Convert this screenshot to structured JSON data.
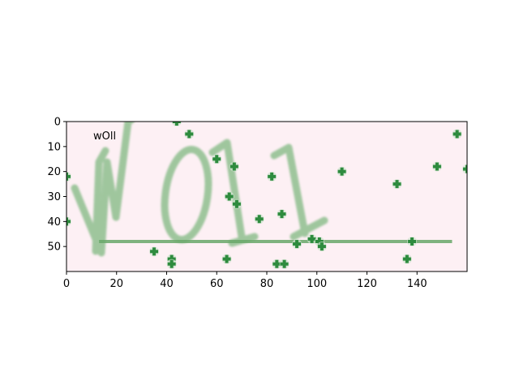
{
  "image": {
    "overlay_text": "wOll",
    "captcha_glyphs": [
      "W",
      "0",
      "1",
      "1"
    ],
    "background_color": "#fdf0f4",
    "glyph_color": "#8fbf8f",
    "noise_color": "#2e8b3e",
    "strike_color": "#6aa86a"
  },
  "axes": {
    "x_range": [
      0,
      160
    ],
    "y_range": [
      0,
      60
    ],
    "y_inverted": true,
    "x_ticks": [
      "0",
      "20",
      "40",
      "60",
      "80",
      "100",
      "120",
      "140"
    ],
    "y_ticks": [
      "0",
      "10",
      "20",
      "30",
      "40",
      "50"
    ],
    "grid": false
  },
  "noise_points": [
    [
      44,
      0
    ],
    [
      49,
      5
    ],
    [
      0,
      22
    ],
    [
      0,
      40
    ],
    [
      60,
      15
    ],
    [
      67,
      18
    ],
    [
      65,
      30
    ],
    [
      68,
      33
    ],
    [
      77,
      39
    ],
    [
      82,
      22
    ],
    [
      86,
      37
    ],
    [
      84,
      57
    ],
    [
      87,
      57
    ],
    [
      92,
      49
    ],
    [
      98,
      47
    ],
    [
      101,
      48
    ],
    [
      102,
      50
    ],
    [
      110,
      20
    ],
    [
      132,
      25
    ],
    [
      136,
      55
    ],
    [
      138,
      48
    ],
    [
      148,
      18
    ],
    [
      156,
      5
    ],
    [
      160,
      19
    ],
    [
      35,
      52
    ],
    [
      42,
      55
    ],
    [
      42,
      57
    ],
    [
      64,
      55
    ]
  ],
  "strike_line": {
    "x": [
      13,
      154
    ],
    "y": [
      48,
      48
    ]
  }
}
